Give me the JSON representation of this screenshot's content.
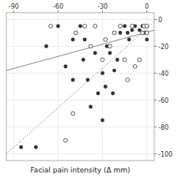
{
  "chart_data": {
    "type": "scatter",
    "xlabel": "Facial pain intensity (Δ mm)",
    "xlim": [
      -95,
      5
    ],
    "ylim": [
      -105,
      5
    ],
    "xticks": [
      -90,
      -60,
      -30,
      0
    ],
    "yticks": [
      0,
      -20,
      -40,
      -60,
      -80,
      -100
    ],
    "grid": true,
    "series": [
      {
        "type": "scatter",
        "marker": "circle",
        "color": "#333333",
        "x": [
          -85,
          -68,
          -60,
          -55,
          -50,
          -48,
          -45,
          -43,
          -42,
          -40,
          -38,
          -35,
          -33,
          -30,
          -28,
          -27,
          -25,
          -23,
          -22,
          -20,
          -18,
          -15,
          -13,
          -12,
          -10,
          -8,
          -5,
          -3,
          -2,
          -1,
          0,
          0,
          -75,
          -50,
          -30,
          -22
        ],
        "values": [
          -95,
          -20,
          -5,
          -35,
          -15,
          -10,
          -5,
          -30,
          -15,
          -45,
          -65,
          -25,
          -55,
          -40,
          -50,
          -20,
          -25,
          -55,
          -38,
          -30,
          -10,
          -5,
          -10,
          -15,
          -8,
          -5,
          -8,
          -5,
          -5,
          -10,
          -5,
          -15,
          -95,
          -45,
          -75,
          -10
        ]
      },
      {
        "type": "scatter",
        "marker": "open-circle",
        "color": "#333333",
        "x": [
          -65,
          -48,
          -42,
          -38,
          -35,
          -30,
          -28,
          -25,
          -22,
          -18,
          -15,
          -13,
          -10,
          -8,
          -5,
          -3,
          -2,
          0,
          0,
          -55,
          -50
        ],
        "values": [
          -5,
          -10,
          -5,
          -20,
          -5,
          -30,
          -15,
          -20,
          -10,
          -5,
          -30,
          -45,
          -5,
          -35,
          -30,
          -10,
          -5,
          -5,
          -10,
          -90,
          -70
        ]
      },
      {
        "type": "line",
        "line_style": "solid",
        "color": "#888888",
        "x": [
          -95,
          5
        ],
        "values": [
          -38,
          -8
        ]
      },
      {
        "type": "line",
        "line_style": "dotted",
        "color": "#888888",
        "x": [
          -95,
          5
        ],
        "values": [
          -100,
          -2
        ]
      }
    ]
  }
}
